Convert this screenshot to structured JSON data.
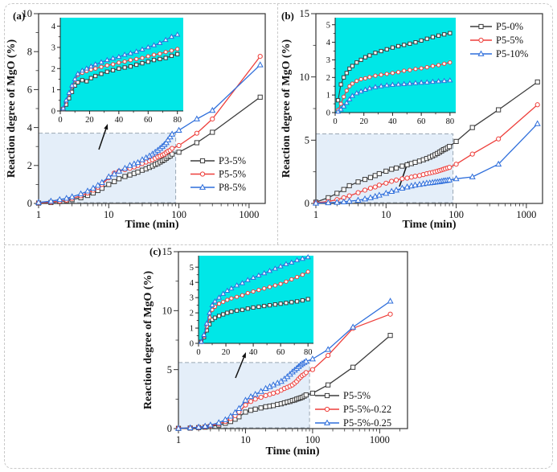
{
  "figure": {
    "background": "#ffffff",
    "border_color": "#c9c9c9",
    "axis_color": "#333333",
    "zoom_arrow_icon": "up-right-arrow"
  },
  "chart_data": [
    {
      "panel": "(a)",
      "type": "line",
      "xlabel": "Time (min)",
      "ylabel": "Reaction degree of MgO (%)",
      "xscale": "log",
      "xlim": [
        1,
        1700
      ],
      "xticks": [
        1,
        10,
        100,
        1000
      ],
      "ylim": [
        0,
        10
      ],
      "yticks": [
        0,
        2,
        4,
        6,
        8,
        10
      ],
      "yminor": [
        1,
        3,
        5,
        7,
        9
      ],
      "legend_position": "bottom-right-inside",
      "highlight_box": {
        "x": [
          1,
          90
        ],
        "y": [
          0,
          3.7
        ],
        "fill": "#ddeaf7",
        "border": "#9aa7b3"
      },
      "x": [
        1,
        1.5,
        2,
        2.5,
        3,
        4,
        5,
        6,
        7,
        8,
        10,
        12,
        14,
        17,
        20,
        23,
        26,
        30,
        34,
        38,
        42,
        46,
        50,
        54,
        58,
        62,
        66,
        70,
        75,
        80,
        100,
        180,
        300,
        1440
      ],
      "series": [
        {
          "name": "P3-5%",
          "color": "#3d3d3d",
          "marker": "square",
          "y": [
            0.02,
            0.05,
            0.1,
            0.14,
            0.2,
            0.3,
            0.42,
            0.55,
            0.68,
            0.8,
            1.0,
            1.15,
            1.3,
            1.42,
            1.5,
            1.58,
            1.65,
            1.75,
            1.82,
            1.9,
            1.97,
            2.05,
            2.1,
            2.18,
            2.25,
            2.3,
            2.38,
            2.45,
            2.5,
            2.6,
            2.7,
            3.2,
            3.75,
            5.6
          ]
        },
        {
          "name": "P5-5%",
          "color": "#ee3f3b",
          "marker": "circle",
          "y": [
            0.03,
            0.07,
            0.12,
            0.18,
            0.27,
            0.4,
            0.55,
            0.7,
            0.85,
            1.0,
            1.35,
            1.6,
            1.7,
            1.78,
            1.85,
            1.92,
            2.0,
            2.1,
            2.18,
            2.25,
            2.3,
            2.38,
            2.45,
            2.5,
            2.55,
            2.6,
            2.68,
            2.75,
            2.8,
            2.9,
            3.05,
            3.7,
            4.45,
            7.75
          ]
        },
        {
          "name": "P8-5%",
          "color": "#2e6edb",
          "marker": "triangle",
          "y": [
            0.05,
            0.12,
            0.2,
            0.27,
            0.35,
            0.5,
            0.65,
            0.8,
            0.95,
            1.1,
            1.4,
            1.55,
            1.7,
            1.85,
            2.0,
            2.08,
            2.15,
            2.3,
            2.4,
            2.5,
            2.6,
            2.7,
            2.8,
            2.9,
            3.0,
            3.1,
            3.2,
            3.35,
            3.5,
            3.65,
            3.85,
            4.45,
            4.9,
            7.3
          ]
        }
      ],
      "inset": {
        "bg": "#00e7e7",
        "xlim": [
          0,
          84
        ],
        "xticks": [
          0,
          20,
          40,
          60,
          80
        ],
        "xminor": [
          10,
          30,
          50,
          70
        ],
        "ylim": [
          0,
          4.4
        ],
        "yticks": [
          0,
          1,
          2,
          3,
          4
        ],
        "yminor": [
          0.5,
          1.5,
          2.5,
          3.5
        ],
        "x": [
          2,
          4,
          6,
          8,
          10,
          12,
          15,
          18,
          21,
          24,
          28,
          32,
          36,
          40,
          44,
          48,
          52,
          56,
          60,
          64,
          68,
          72,
          76,
          80
        ],
        "series": [
          {
            "name": "P3-5%",
            "color": "#3d3d3d",
            "marker": "square",
            "y": [
              0.08,
              0.3,
              0.6,
              0.9,
              1.2,
              1.35,
              1.45,
              1.4,
              1.55,
              1.65,
              1.75,
              1.85,
              1.92,
              2.0,
              2.05,
              2.1,
              2.18,
              2.25,
              2.32,
              2.4,
              2.45,
              2.5,
              2.6,
              2.68
            ]
          },
          {
            "name": "P5-5%",
            "color": "#ee3f3b",
            "marker": "circle",
            "y": [
              0.12,
              0.45,
              0.8,
              1.15,
              1.45,
              1.7,
              1.8,
              1.88,
              1.95,
              2.0,
              2.08,
              2.15,
              2.2,
              2.28,
              2.33,
              2.4,
              2.45,
              2.5,
              2.58,
              2.65,
              2.7,
              2.78,
              2.85,
              2.92
            ]
          },
          {
            "name": "P8-5%",
            "color": "#2e6edb",
            "marker": "triangle",
            "y": [
              0.12,
              0.5,
              0.85,
              1.2,
              1.5,
              1.75,
              1.9,
              2.0,
              2.1,
              2.2,
              2.3,
              2.4,
              2.48,
              2.55,
              2.65,
              2.72,
              2.8,
              2.9,
              3.0,
              3.1,
              3.2,
              3.35,
              3.5,
              3.6
            ]
          }
        ]
      }
    },
    {
      "panel": "(b)",
      "type": "line",
      "xlabel": "Time (min)",
      "ylabel": "Reaction degree of MgO (%)",
      "xscale": "log",
      "xlim": [
        1,
        1700
      ],
      "xticks": [
        1,
        10,
        100,
        1000
      ],
      "ylim": [
        0,
        15
      ],
      "yticks": [
        0,
        5,
        10,
        15
      ],
      "yminor": [
        2.5,
        7.5,
        12.5
      ],
      "legend_position": "top-right-inside",
      "highlight_box": {
        "x": [
          1,
          90
        ],
        "y": [
          0,
          5.5
        ],
        "fill": "#ddeaf7",
        "border": "#9aa7b3"
      },
      "x": [
        1,
        1.5,
        2,
        2.5,
        3,
        4,
        5,
        6,
        7,
        8,
        10,
        12,
        14,
        17,
        20,
        23,
        26,
        30,
        34,
        38,
        42,
        46,
        50,
        54,
        58,
        62,
        66,
        70,
        75,
        80,
        100,
        170,
        400,
        1440
      ],
      "series": [
        {
          "name": "P5-0%",
          "color": "#3d3d3d",
          "marker": "square",
          "y": [
            0.1,
            0.45,
            0.8,
            1.1,
            1.4,
            1.7,
            1.9,
            2.05,
            2.2,
            2.35,
            2.55,
            2.7,
            2.8,
            2.95,
            3.05,
            3.15,
            3.25,
            3.35,
            3.45,
            3.55,
            3.65,
            3.75,
            3.85,
            3.95,
            4.05,
            4.15,
            4.25,
            4.3,
            4.4,
            4.5,
            4.9,
            6.0,
            7.4,
            9.6
          ]
        },
        {
          "name": "P5-5%",
          "color": "#ee3f3b",
          "marker": "circle",
          "y": [
            0.05,
            0.15,
            0.3,
            0.45,
            0.6,
            0.85,
            1.05,
            1.2,
            1.3,
            1.45,
            1.6,
            1.75,
            1.85,
            1.95,
            2.0,
            2.08,
            2.15,
            2.2,
            2.28,
            2.35,
            2.4,
            2.45,
            2.5,
            2.55,
            2.6,
            2.65,
            2.7,
            2.75,
            2.8,
            2.85,
            3.1,
            3.9,
            5.1,
            7.8
          ]
        },
        {
          "name": "P5-10%",
          "color": "#2e6edb",
          "marker": "triangle",
          "y": [
            0.02,
            0.05,
            0.08,
            0.12,
            0.18,
            0.25,
            0.35,
            0.45,
            0.55,
            0.65,
            0.8,
            0.95,
            1.05,
            1.2,
            1.3,
            1.38,
            1.45,
            1.5,
            1.55,
            1.6,
            1.62,
            1.65,
            1.68,
            1.7,
            1.72,
            1.75,
            1.78,
            1.8,
            1.82,
            1.85,
            1.95,
            2.1,
            3.1,
            6.3
          ]
        }
      ],
      "inset": {
        "bg": "#00e7e7",
        "xlim": [
          0,
          84
        ],
        "xticks": [
          0,
          20,
          40,
          60,
          80
        ],
        "xminor": [
          10,
          30,
          50,
          70
        ],
        "ylim": [
          0,
          5.4
        ],
        "yticks": [
          0,
          1,
          2,
          3,
          4,
          5
        ],
        "yminor": [
          0.5,
          1.5,
          2.5,
          3.5,
          4.5
        ],
        "x": [
          2,
          4,
          6,
          8,
          10,
          12,
          15,
          18,
          21,
          24,
          28,
          32,
          36,
          40,
          44,
          48,
          52,
          56,
          60,
          64,
          68,
          72,
          76,
          80
        ],
        "series": [
          {
            "name": "P5-0%",
            "color": "#3d3d3d",
            "marker": "square",
            "y": [
              0.7,
              1.6,
              2.0,
              2.25,
              2.5,
              2.65,
              2.85,
              3.0,
              3.15,
              3.25,
              3.4,
              3.5,
              3.6,
              3.7,
              3.78,
              3.85,
              3.92,
              4.0,
              4.1,
              4.2,
              4.3,
              4.38,
              4.45,
              4.52
            ]
          },
          {
            "name": "P5-5%",
            "color": "#ee3f3b",
            "marker": "circle",
            "y": [
              0.15,
              0.5,
              0.9,
              1.25,
              1.5,
              1.65,
              1.8,
              1.9,
              1.95,
              2.02,
              2.1,
              2.15,
              2.2,
              2.25,
              2.3,
              2.38,
              2.42,
              2.48,
              2.52,
              2.58,
              2.65,
              2.7,
              2.78,
              2.85
            ]
          },
          {
            "name": "P5-10%",
            "color": "#2e6edb",
            "marker": "triangle",
            "y": [
              0.05,
              0.18,
              0.35,
              0.55,
              0.75,
              0.95,
              1.1,
              1.2,
              1.3,
              1.38,
              1.45,
              1.5,
              1.55,
              1.58,
              1.6,
              1.62,
              1.65,
              1.68,
              1.7,
              1.72,
              1.75,
              1.78,
              1.8,
              1.83
            ]
          }
        ]
      }
    },
    {
      "panel": "(c)",
      "type": "line",
      "xlabel": "Time (min)",
      "ylabel": "Reaction degree of MgO (%)",
      "xscale": "log",
      "xlim": [
        1,
        2600
      ],
      "xticks": [
        1,
        10,
        100,
        1000
      ],
      "ylim": [
        0,
        15
      ],
      "yticks": [
        0,
        5,
        10,
        15
      ],
      "yminor": [
        2.5,
        7.5,
        12.5
      ],
      "legend_position": "bottom-right-inside",
      "highlight_box": {
        "x": [
          1,
          90
        ],
        "y": [
          0,
          5.6
        ],
        "fill": "#ddeaf7",
        "border": "#9aa7b3"
      },
      "x": [
        1,
        1.5,
        2,
        2.5,
        3,
        4,
        5,
        6,
        7,
        8,
        10,
        12,
        14,
        17,
        20,
        23,
        26,
        30,
        34,
        38,
        42,
        46,
        50,
        54,
        58,
        62,
        66,
        70,
        75,
        80,
        100,
        170,
        400,
        1440
      ],
      "series": [
        {
          "name": "P5-5%",
          "color": "#3d3d3d",
          "marker": "square",
          "y": [
            0.02,
            0.04,
            0.08,
            0.12,
            0.18,
            0.3,
            0.45,
            0.6,
            0.8,
            1.0,
            1.4,
            1.55,
            1.65,
            1.75,
            1.85,
            1.9,
            1.95,
            2.05,
            2.1,
            2.18,
            2.25,
            2.3,
            2.38,
            2.42,
            2.5,
            2.55,
            2.6,
            2.65,
            2.75,
            2.85,
            3.0,
            3.7,
            5.2,
            7.9
          ]
        },
        {
          "name": "P5-5%-0.22",
          "color": "#ee3f3b",
          "marker": "circle",
          "y": [
            0.02,
            0.05,
            0.1,
            0.16,
            0.24,
            0.4,
            0.6,
            0.85,
            1.1,
            1.4,
            2.0,
            2.3,
            2.5,
            2.65,
            2.8,
            2.9,
            3.0,
            3.1,
            3.25,
            3.4,
            3.5,
            3.6,
            3.7,
            3.85,
            4.0,
            4.2,
            4.35,
            4.5,
            4.6,
            4.75,
            5.0,
            6.2,
            8.5,
            9.7
          ]
        },
        {
          "name": "P5-5%-0.25",
          "color": "#2e6edb",
          "marker": "triangle",
          "y": [
            0.02,
            0.06,
            0.12,
            0.2,
            0.3,
            0.5,
            0.75,
            1.05,
            1.35,
            1.7,
            2.4,
            2.7,
            2.9,
            3.15,
            3.4,
            3.55,
            3.7,
            3.85,
            4.0,
            4.2,
            4.4,
            4.6,
            4.8,
            4.95,
            5.1,
            5.25,
            5.4,
            5.5,
            5.6,
            5.7,
            5.9,
            6.7,
            8.6,
            10.8
          ]
        }
      ],
      "inset": {
        "bg": "#00e7e7",
        "xlim": [
          0,
          84
        ],
        "xticks": [
          0,
          20,
          40,
          60,
          80
        ],
        "xminor": [
          10,
          30,
          50,
          70
        ],
        "ylim": [
          0,
          5.75
        ],
        "yticks": [
          0,
          1,
          2,
          3,
          4,
          5
        ],
        "yminor": [
          0.5,
          1.5,
          2.5,
          3.5,
          4.5
        ],
        "x": [
          2,
          4,
          6,
          8,
          10,
          12,
          15,
          18,
          21,
          24,
          28,
          32,
          36,
          40,
          44,
          48,
          52,
          56,
          60,
          64,
          68,
          72,
          76,
          80
        ],
        "series": [
          {
            "name": "P5-5%",
            "color": "#3d3d3d",
            "marker": "square",
            "y": [
              0.1,
              0.4,
              0.85,
              1.25,
              1.55,
              1.68,
              1.8,
              1.9,
              2.0,
              2.08,
              2.15,
              2.2,
              2.28,
              2.35,
              2.4,
              2.45,
              2.5,
              2.55,
              2.6,
              2.65,
              2.7,
              2.75,
              2.82,
              2.9
            ]
          },
          {
            "name": "P5-5%-0.22",
            "color": "#ee3f3b",
            "marker": "circle",
            "y": [
              0.1,
              0.5,
              1.1,
              1.7,
              2.2,
              2.4,
              2.6,
              2.72,
              2.85,
              2.95,
              3.05,
              3.15,
              3.3,
              3.4,
              3.5,
              3.6,
              3.7,
              3.8,
              3.9,
              4.05,
              4.2,
              4.35,
              4.5,
              4.7
            ]
          },
          {
            "name": "P5-5%-0.25",
            "color": "#2e6edb",
            "marker": "triangle",
            "y": [
              0.1,
              0.55,
              1.3,
              2.0,
              2.5,
              2.75,
              3.0,
              3.25,
              3.45,
              3.6,
              3.8,
              3.95,
              4.15,
              4.3,
              4.45,
              4.6,
              4.75,
              4.9,
              5.05,
              5.2,
              5.3,
              5.45,
              5.55,
              5.65
            ]
          }
        ]
      }
    }
  ]
}
